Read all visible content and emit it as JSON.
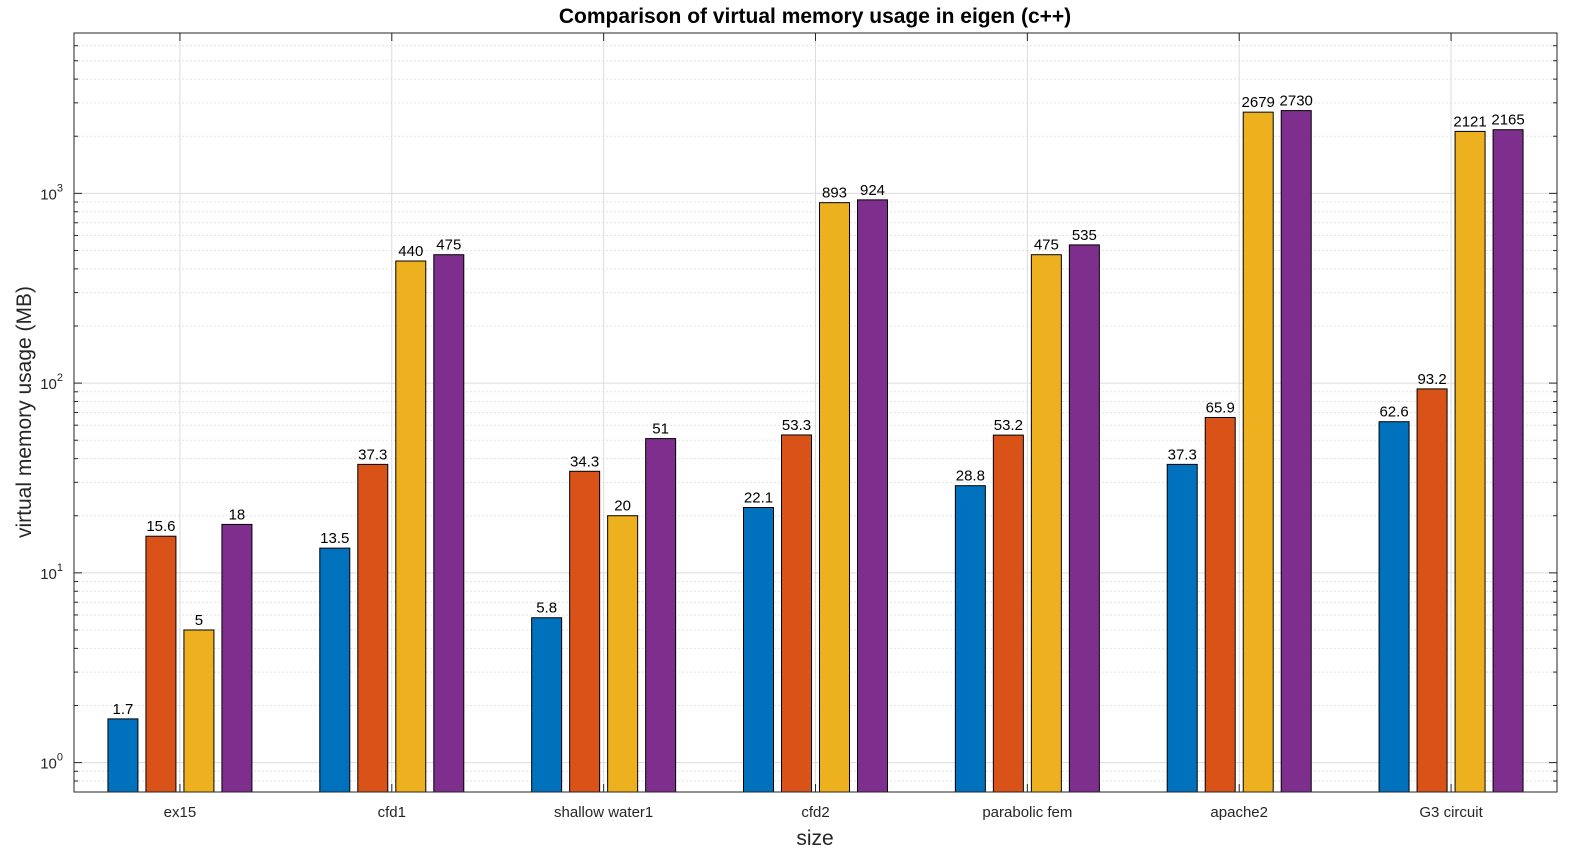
{
  "chart_data": {
    "type": "bar",
    "title": "Comparison of virtual memory usage in eigen (c++)",
    "xlabel": "size",
    "ylabel": "virtual memory usage (MB)",
    "yscale": "log",
    "ylim": [
      0.7,
      7000
    ],
    "yticks": [
      1,
      10,
      100,
      1000
    ],
    "ytick_labels": [
      {
        "base": "10",
        "exp": "0"
      },
      {
        "base": "10",
        "exp": "1"
      },
      {
        "base": "10",
        "exp": "2"
      },
      {
        "base": "10",
        "exp": "3"
      }
    ],
    "grid": true,
    "categories": [
      "ex15",
      "cfd1",
      "shallow water1",
      "cfd2",
      "parabolic fem",
      "apache2",
      "G3 circuit"
    ],
    "series": [
      {
        "values": [
          1.7,
          13.5,
          5.8,
          22.1,
          28.8,
          37.3,
          62.6
        ],
        "labels": [
          "1.7",
          "13.5",
          "5.8",
          "22.1",
          "28.8",
          "37.3",
          "62.6"
        ],
        "color": "#0072BD"
      },
      {
        "values": [
          15.6,
          37.3,
          34.3,
          53.3,
          53.2,
          65.9,
          93.2
        ],
        "labels": [
          "15.6",
          "37.3",
          "34.3",
          "53.3",
          "53.2",
          "65.9",
          "93.2"
        ],
        "color": "#D95319"
      },
      {
        "values": [
          5,
          440,
          20,
          893,
          475,
          2679,
          2121
        ],
        "labels": [
          "5",
          "440",
          "20",
          "893",
          "475",
          "2679",
          "2121"
        ],
        "color": "#EDB120"
      },
      {
        "values": [
          18,
          475,
          51,
          924,
          535,
          2730,
          2165
        ],
        "labels": [
          "18",
          "475",
          "51",
          "924",
          "535",
          "2730",
          "2165"
        ],
        "color": "#7E2F8E"
      }
    ]
  }
}
